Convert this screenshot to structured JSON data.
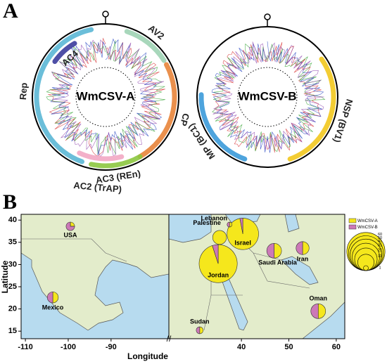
{
  "panel_a": {
    "label": "A",
    "genomes": [
      {
        "name": "WmCSV-A",
        "genes": [
          {
            "label": "AV2",
            "start": 18,
            "end": 58,
            "color": "#9fd3b4"
          },
          {
            "label": "CP",
            "start": 62,
            "end": 150,
            "color": "#e8843a"
          },
          {
            "label": "AC3 (REn)",
            "start": 150,
            "end": 192,
            "color": "#8cc63f"
          },
          {
            "label": "AC2 (TrAP)",
            "start": 165,
            "end": 205,
            "color": "#f2a7c3"
          },
          {
            "label": "Rep",
            "start": 200,
            "end": 348,
            "color": "#5bb7d5"
          },
          {
            "label": "AC4",
            "start": 305,
            "end": 330,
            "color": "#3b3c9c"
          }
        ]
      },
      {
        "name": "WmCSV-B",
        "genes": [
          {
            "label": "NSP (BV1)",
            "start": 55,
            "end": 160,
            "color": "#f2c81e"
          },
          {
            "label": "MP (BC1)",
            "start": 200,
            "end": 272,
            "color": "#3b9ad9"
          }
        ]
      }
    ]
  },
  "chart_data": {
    "type": "pie-map",
    "panel_label": "B",
    "x_label": "Longitude",
    "y_label": "Latitude",
    "categories": [
      "USA",
      "Mexico",
      "Israel",
      "Lebanon",
      "Palestine",
      "Jordan",
      "Iran",
      "Saudi Arabia",
      "Oman",
      "Sudan"
    ],
    "x": [
      -99.5,
      -103.6,
      40.3,
      37.5,
      35.4,
      35.1,
      52.9,
      46.9,
      56.2,
      31.2
    ],
    "y": [
      38.6,
      22.6,
      36.9,
      39,
      36.1,
      30.2,
      33.7,
      33.1,
      19.5,
      15.2
    ],
    "sizes": [
      3,
      5,
      41,
      1,
      8,
      60,
      7,
      9,
      9,
      2
    ],
    "series": [
      {
        "name": "WmCSV-A",
        "color": "#f5e71c",
        "values": [
          25,
          50,
          97,
          50,
          100,
          95,
          50,
          50,
          50,
          50
        ]
      },
      {
        "name": "WmCSV-B",
        "color": "#cc79b7",
        "values": [
          75,
          50,
          3,
          50,
          0,
          5,
          50,
          50,
          50,
          50
        ]
      }
    ],
    "xlim_west": [
      -111,
      -76.5
    ],
    "xticks_west": [
      -110,
      -100,
      -90
    ],
    "xlim_east": [
      24.7,
      61.8
    ],
    "xticks_east": [
      40,
      50,
      60
    ],
    "ylim": [
      13.3,
      41.3
    ],
    "yticks": [
      15,
      20,
      25,
      30,
      35,
      40
    ],
    "size_legend": [
      60,
      50,
      41,
      31,
      21,
      11,
      1
    ]
  }
}
